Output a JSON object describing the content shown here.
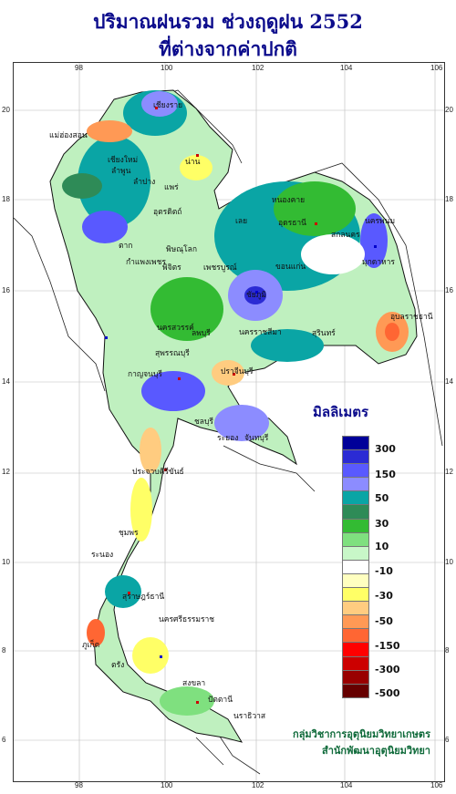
{
  "title_line1": "ปริมาณฝนรวม ช่วงฤดูฝน 2552",
  "title_line2": "ที่ต่างจากค่าปกติ",
  "lon_ticks": [
    "98",
    "100",
    "102",
    "104",
    "106"
  ],
  "lat_ticks": [
    "20",
    "18",
    "16",
    "14",
    "12",
    "10",
    "8",
    "6"
  ],
  "legend_title": "มิลลิเมตร",
  "legend": {
    "colors": [
      "#000099",
      "#2b2bd4",
      "#5959ff",
      "#8c8cff",
      "#0aa5a5",
      "#2e8b57",
      "#33bb33",
      "#7fe07f",
      "#c8f7c8",
      "#ffffff",
      "#ffffc0",
      "#ffff66",
      "#ffcc80",
      "#ff9955",
      "#ff6633",
      "#ff0000",
      "#cc0000",
      "#990000",
      "#660000"
    ],
    "labels": [
      "300",
      "150",
      "50",
      "30",
      "10",
      "-10",
      "-30",
      "-50",
      "-150",
      "-300",
      "-500"
    ]
  },
  "places": [
    "เชียงราย",
    "เชียงใหม่",
    "ลำพูน",
    "แม่ฮ่องสอน",
    "น่าน",
    "ลำปาง",
    "แพร่",
    "ตาก",
    "อุตรดิตถ์",
    "พิษณุโลก",
    "กำแพงเพชร",
    "พิจิตร",
    "เพชรบูรณ์",
    "หนองคาย",
    "อุดรธานี",
    "สกลนคร",
    "นครพนม",
    "มุกดาหาร",
    "เลย",
    "ขอนแก่น",
    "ชัยภูมิ",
    "นครราชสีมา",
    "สุรินทร์",
    "อุบลราชธานี",
    "นครสวรรค์",
    "ลพบุรี",
    "สุพรรณบุรี",
    "กาญจนบุรี",
    "ปราจีนบุรี",
    "ชลบุรี",
    "ระยอง",
    "จันทบุรี",
    "ประจวบคีรีขันธ์",
    "ชุมพร",
    "ระนอง",
    "สุราษฎร์ธานี",
    "นครศรีธรรมราช",
    "ภูเก็ต",
    "ตรัง",
    "สงขลา",
    "ปัตตานี",
    "นราธิวาส"
  ],
  "credit_line1": "กลุ่มวิชาการอุตุนิยมวิทยาเกษตร",
  "credit_line2": "สำนักพัฒนาอุตุนิยมวิทยา"
}
